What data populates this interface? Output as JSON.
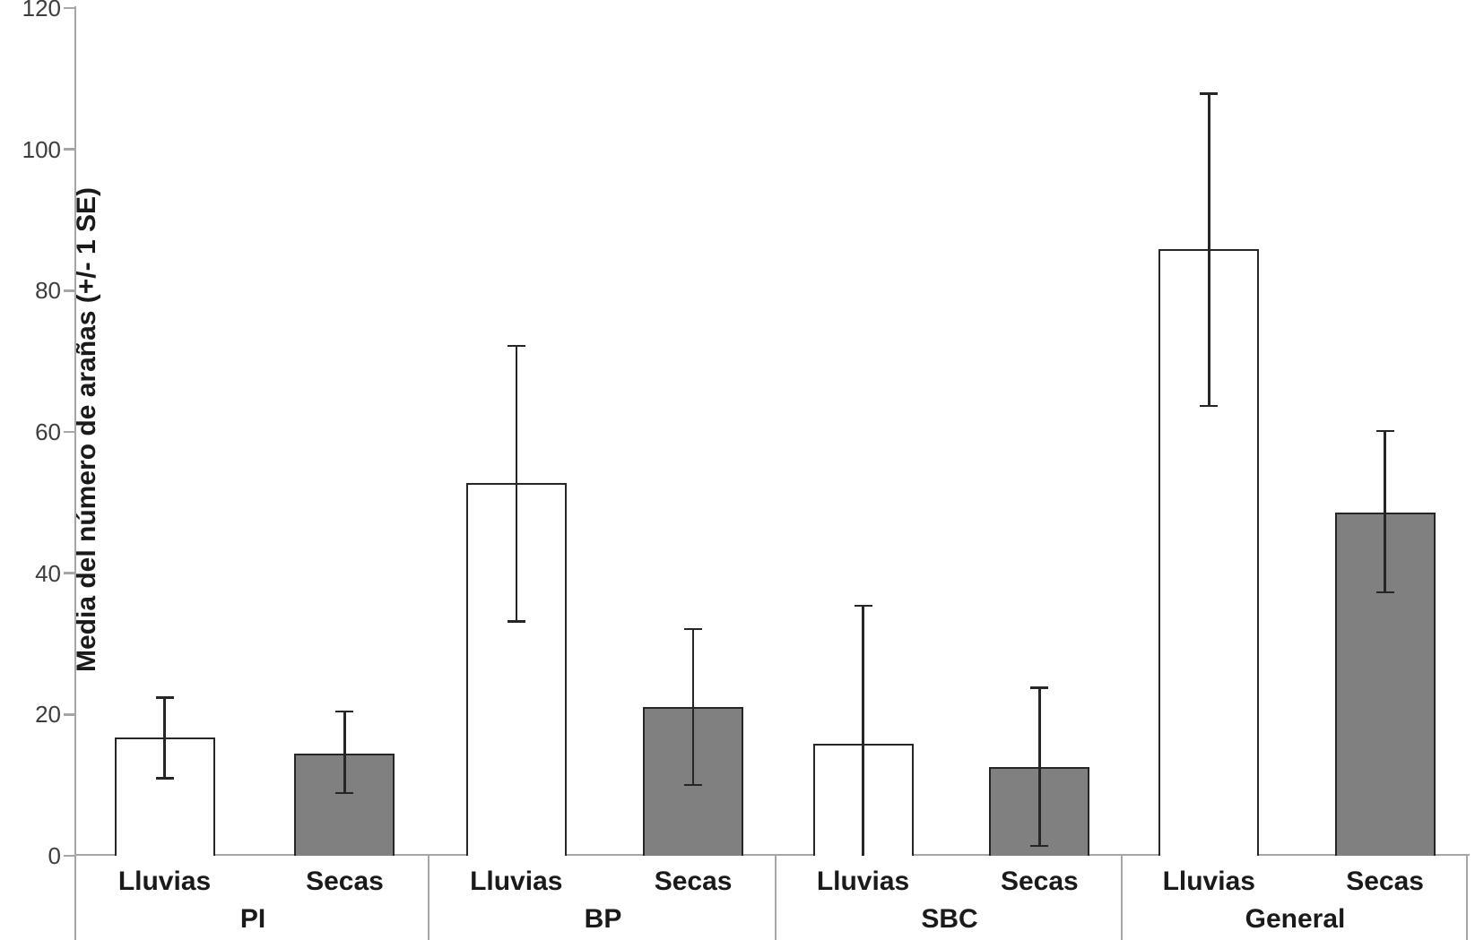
{
  "chart_data": {
    "type": "bar",
    "title": "",
    "ylabel": "Media del número de arañas (+/- 1 SE)",
    "xlabel": "",
    "ylim": [
      0,
      120
    ],
    "yticks": [
      0,
      20,
      40,
      60,
      80,
      100,
      120
    ],
    "grid": false,
    "legend": "none",
    "categories": [
      "Lluvias",
      "Secas"
    ],
    "bar_fills": {
      "Lluvias": "#ffffff",
      "Secas": "#808080"
    },
    "groups": [
      {
        "label": "PI",
        "bars": [
          {
            "category": "Lluvias",
            "mean": 16.8,
            "err_low": 11.0,
            "err_high": 22.4,
            "lower_cap": true
          },
          {
            "category": "Secas",
            "mean": 14.5,
            "err_low": 8.9,
            "err_high": 20.4,
            "lower_cap": true
          }
        ]
      },
      {
        "label": "BP",
        "bars": [
          {
            "category": "Lluvias",
            "mean": 52.8,
            "err_low": 33.2,
            "err_high": 72.2,
            "lower_cap": true
          },
          {
            "category": "Secas",
            "mean": 21.0,
            "err_low": 10.0,
            "err_high": 32.1,
            "lower_cap": true
          }
        ]
      },
      {
        "label": "SBC",
        "bars": [
          {
            "category": "Lluvias",
            "mean": 15.8,
            "err_low": 0,
            "err_high": 35.4,
            "lower_cap": false
          },
          {
            "category": "Secas",
            "mean": 12.5,
            "err_low": 1.4,
            "err_high": 23.8,
            "lower_cap": true
          }
        ]
      },
      {
        "label": "General",
        "bars": [
          {
            "category": "Lluvias",
            "mean": 85.9,
            "err_low": 63.7,
            "err_high": 107.9,
            "lower_cap": true
          },
          {
            "category": "Secas",
            "mean": 48.6,
            "err_low": 37.3,
            "err_high": 60.1,
            "lower_cap": true
          }
        ]
      }
    ],
    "colors": {
      "bar_outline": "#262626",
      "error_bar": "#262626",
      "axis": "#a6a6a6",
      "tick_label": "#3d3d3d",
      "label_text": "#1a1a1a",
      "background": "#ffffff"
    }
  }
}
